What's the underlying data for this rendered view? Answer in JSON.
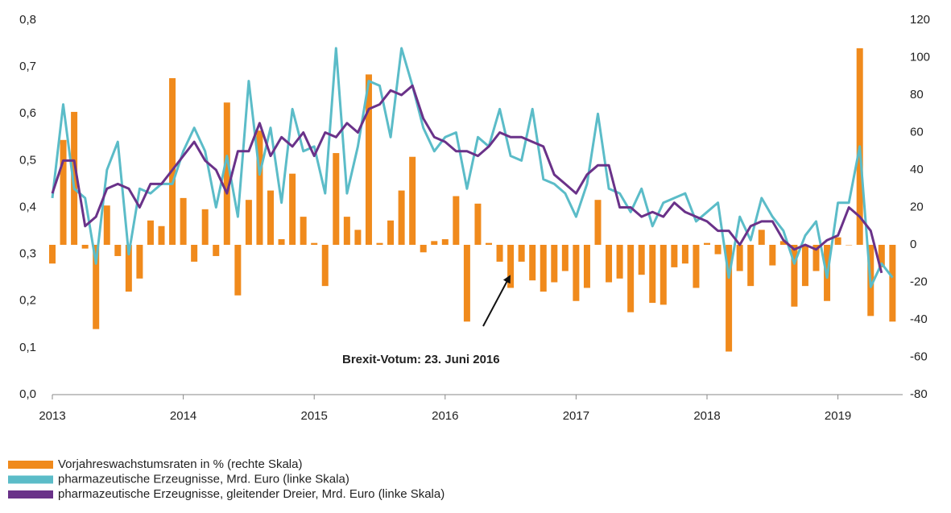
{
  "chart_data": {
    "type": "combo",
    "annotation": "Brexit-Votum: 23. Juni 2016",
    "categories": [
      "2013",
      null,
      null,
      null,
      null,
      null,
      null,
      null,
      null,
      null,
      null,
      null,
      "2014",
      null,
      null,
      null,
      null,
      null,
      null,
      null,
      null,
      null,
      null,
      null,
      "2015",
      null,
      null,
      null,
      null,
      null,
      null,
      null,
      null,
      null,
      null,
      null,
      "2016",
      null,
      null,
      null,
      null,
      null,
      null,
      null,
      null,
      null,
      null,
      null,
      "2017",
      null,
      null,
      null,
      null,
      null,
      null,
      null,
      null,
      null,
      null,
      null,
      "2018",
      null,
      null,
      null,
      null,
      null,
      null,
      null,
      null,
      null,
      null,
      null,
      "2019",
      null,
      null,
      null,
      null,
      null
    ],
    "ylim": [
      0,
      0.8
    ],
    "yticks": [
      {
        "value": 0,
        "label": "0,0"
      },
      {
        "value": 0.1,
        "label": "0,1"
      },
      {
        "value": 0.2,
        "label": "0,2"
      },
      {
        "value": 0.3,
        "label": "0,3"
      },
      {
        "value": 0.4,
        "label": "0,4"
      },
      {
        "value": 0.5,
        "label": "0,5"
      },
      {
        "value": 0.6,
        "label": "0,6"
      },
      {
        "value": 0.7,
        "label": "0,7"
      },
      {
        "value": 0.8,
        "label": "0,8"
      }
    ],
    "y2lim": [
      -80,
      120
    ],
    "y2ticks": [
      -80,
      -60,
      -40,
      -20,
      0,
      20,
      40,
      60,
      80,
      100,
      120
    ],
    "series": [
      {
        "name": "Vorjahreswachstumsraten in % (rechte Skala)",
        "type": "bar",
        "axis": "y2",
        "color": "#f08a1c",
        "values": [
          -10,
          56,
          71,
          -2,
          -45,
          21,
          -6,
          -25,
          -18,
          13,
          10,
          89,
          25,
          -9,
          19,
          -6,
          76,
          -27,
          24,
          61,
          29,
          3,
          38,
          15,
          1,
          -22,
          49,
          15,
          8,
          91,
          1,
          13,
          29,
          47,
          -4,
          2,
          3,
          26,
          -41,
          22,
          1,
          -9,
          -23,
          -9,
          -19,
          -25,
          -20,
          -14,
          -30,
          -23,
          24,
          -20,
          -18,
          -36,
          -16,
          -31,
          -32,
          -12,
          -10,
          -23,
          1,
          -5,
          -57,
          -14,
          -22,
          8,
          -11,
          2,
          -33,
          -22,
          -14,
          -30,
          4,
          0,
          105,
          -38,
          -12,
          -41
        ]
      },
      {
        "name": "pharmazeutische Erzeugnisse, Mrd. Euro (linke Skala)",
        "type": "line",
        "color": "#5bbcc8",
        "values": [
          0.42,
          0.62,
          0.44,
          0.42,
          0.28,
          0.48,
          0.54,
          0.3,
          0.44,
          0.43,
          0.45,
          0.45,
          0.52,
          0.57,
          0.52,
          0.4,
          0.51,
          0.38,
          0.67,
          0.47,
          0.57,
          0.41,
          0.61,
          0.52,
          0.53,
          0.43,
          0.74,
          0.43,
          0.53,
          0.67,
          0.66,
          0.55,
          0.74,
          0.66,
          0.57,
          0.52,
          0.55,
          0.56,
          0.44,
          0.55,
          0.53,
          0.61,
          0.51,
          0.5,
          0.61,
          0.46,
          0.45,
          0.43,
          0.38,
          0.45,
          0.6,
          0.44,
          0.43,
          0.39,
          0.44,
          0.36,
          0.41,
          0.42,
          0.43,
          0.37,
          0.39,
          0.41,
          0.25,
          0.38,
          0.33,
          0.42,
          0.38,
          0.35,
          0.28,
          0.34,
          0.37,
          0.25,
          0.41,
          0.41,
          0.53,
          0.23,
          0.28,
          0.25
        ]
      },
      {
        "name": "pharmazeutische Erzeugnisse, gleitender Dreier, Mrd. Euro (linke Skala)",
        "type": "line",
        "color": "#6a3289",
        "values": [
          0.43,
          0.5,
          0.5,
          0.36,
          0.38,
          0.44,
          0.45,
          0.44,
          0.4,
          0.45,
          0.45,
          0.48,
          0.51,
          0.54,
          0.5,
          0.48,
          0.43,
          0.52,
          0.52,
          0.58,
          0.51,
          0.55,
          0.53,
          0.56,
          0.51,
          0.56,
          0.55,
          0.58,
          0.56,
          0.61,
          0.62,
          0.65,
          0.64,
          0.66,
          0.59,
          0.55,
          0.54,
          0.52,
          0.52,
          0.51,
          0.53,
          0.56,
          0.55,
          0.55,
          0.54,
          0.53,
          0.47,
          0.45,
          0.43,
          0.47,
          0.49,
          0.49,
          0.4,
          0.4,
          0.38,
          0.39,
          0.38,
          0.41,
          0.39,
          0.38,
          0.37,
          0.35,
          0.35,
          0.32,
          0.36,
          0.37,
          0.37,
          0.33,
          0.31,
          0.32,
          0.31,
          0.33,
          0.34,
          0.4,
          0.38,
          0.35,
          0.26,
          null
        ]
      }
    ]
  }
}
